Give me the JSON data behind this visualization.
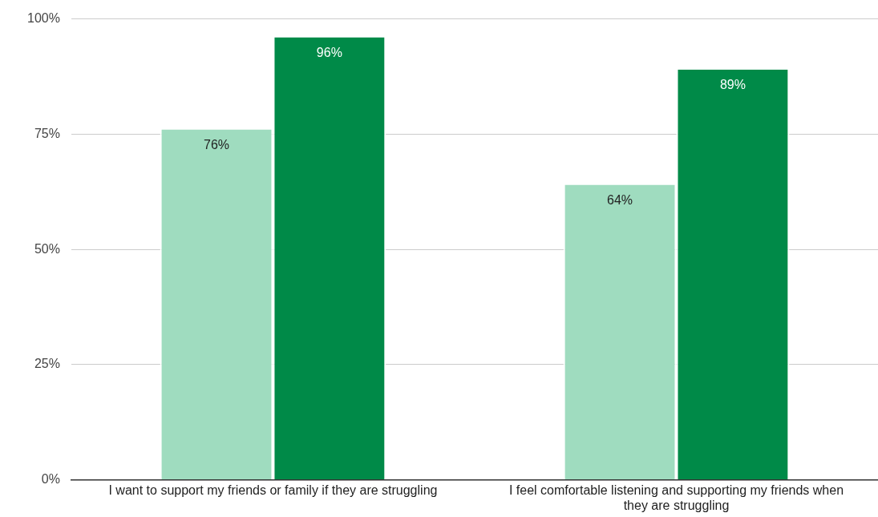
{
  "chart_data": {
    "type": "bar",
    "categories": [
      "I want to support my friends or family if they are struggling",
      "I feel comfortable listening and supporting my friends when they are struggling"
    ],
    "series": [
      {
        "color": "#9fdcbf",
        "values": [
          76,
          64
        ],
        "value_labels": [
          "76%",
          "64%"
        ]
      },
      {
        "color": "#008a48",
        "values": [
          96,
          89
        ],
        "value_labels": [
          "96%",
          "89%"
        ]
      }
    ],
    "ylim": [
      0,
      100
    ],
    "yticks": [
      {
        "value": 0,
        "label": "0%"
      },
      {
        "value": 25,
        "label": "25%"
      },
      {
        "value": 50,
        "label": "50%"
      },
      {
        "value": 75,
        "label": "75%"
      },
      {
        "value": 100,
        "label": "100%"
      }
    ],
    "grid": "y",
    "legend": false
  }
}
